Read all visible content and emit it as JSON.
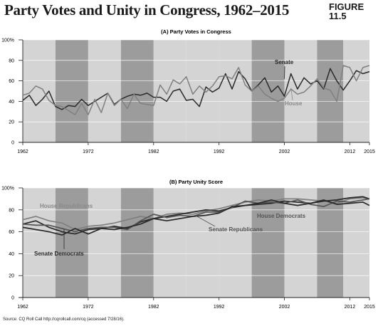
{
  "header": {
    "title": "Party Votes and Unity in Congress, 1962–2015",
    "figure_label": "FIGURE\n11.5"
  },
  "source": "Source: CQ Roll Call http://cqrollcall.com/cq (accessed 7/28/16).",
  "colors": {
    "band_light": "#d4d4d4",
    "band_dark": "#9c9c9c",
    "dark_series": "#2a2a2a",
    "light_series": "#808080",
    "mid_series": "#555555",
    "label_light": "#8a8a8a"
  },
  "chart_data": [
    {
      "type": "line",
      "title": "(A) Party Votes in Congress",
      "xlim": [
        1962,
        2015
      ],
      "ylim": [
        0,
        100
      ],
      "y_ticks": [
        "0",
        "20",
        "40",
        "60",
        "80",
        "100%"
      ],
      "y_tick_values": [
        0,
        20,
        40,
        60,
        80,
        100
      ],
      "x_ticks": [
        "1962",
        "1972",
        "1982",
        "1992",
        "2002",
        "2012",
        "2015"
      ],
      "x_tick_values": [
        1962,
        1972,
        1982,
        1992,
        2002,
        2012,
        2015
      ],
      "shade_bands": [
        [
          1962,
          1967
        ],
        [
          1967,
          1972
        ],
        [
          1972,
          1977
        ],
        [
          1977,
          1982
        ],
        [
          1982,
          1987
        ],
        [
          1987,
          1992
        ],
        [
          1992,
          1997
        ],
        [
          1997,
          2002
        ],
        [
          2002,
          2007
        ],
        [
          2007,
          2011
        ],
        [
          2011,
          2015
        ]
      ],
      "band_shades": [
        "light",
        "dark",
        "light",
        "dark",
        "light",
        "light",
        "light",
        "dark",
        "light",
        "dark",
        "light"
      ],
      "x": [
        1962,
        1963,
        1964,
        1965,
        1966,
        1967,
        1968,
        1969,
        1970,
        1971,
        1972,
        1973,
        1974,
        1975,
        1976,
        1977,
        1978,
        1979,
        1980,
        1981,
        1982,
        1983,
        1984,
        1985,
        1986,
        1987,
        1988,
        1989,
        1990,
        1991,
        1992,
        1993,
        1994,
        1995,
        1996,
        1997,
        1998,
        1999,
        2000,
        2001,
        2002,
        2003,
        2004,
        2005,
        2006,
        2007,
        2008,
        2009,
        2010,
        2011,
        2012,
        2013,
        2014,
        2015
      ],
      "series": [
        {
          "name": "Senate",
          "label": "Senate",
          "shade": "dark",
          "values": [
            41,
            46,
            36,
            42,
            50,
            35,
            32,
            36,
            35,
            42,
            36,
            40,
            44,
            48,
            37,
            42,
            45,
            47,
            46,
            48,
            44,
            44,
            40,
            50,
            52,
            41,
            42,
            35,
            54,
            49,
            53,
            67,
            52,
            69,
            62,
            50,
            56,
            63,
            49,
            55,
            45,
            67,
            52,
            63,
            57,
            60,
            52,
            72,
            60,
            51,
            60,
            70,
            67,
            69
          ]
        },
        {
          "name": "House",
          "label": "House",
          "shade": "light",
          "values": [
            46,
            48,
            55,
            52,
            41,
            36,
            35,
            31,
            27,
            38,
            27,
            42,
            29,
            48,
            36,
            42,
            33,
            47,
            38,
            37,
            36,
            56,
            47,
            61,
            57,
            64,
            47,
            55,
            49,
            55,
            64,
            65,
            62,
            73,
            56,
            50,
            55,
            47,
            43,
            40,
            43,
            52,
            47,
            49,
            55,
            62,
            53,
            51,
            40,
            75,
            73,
            60,
            73,
            75
          ]
        }
      ]
    },
    {
      "type": "line",
      "title": "(B) Party Unity Score",
      "xlim": [
        1962,
        2015
      ],
      "ylim": [
        0,
        100
      ],
      "y_ticks": [
        "0",
        "20",
        "40",
        "60",
        "80",
        "100%"
      ],
      "y_tick_values": [
        0,
        20,
        40,
        60,
        80,
        100
      ],
      "x_ticks": [
        "1962",
        "1972",
        "1982",
        "1992",
        "2002",
        "2012",
        "2015"
      ],
      "x_tick_values": [
        1962,
        1972,
        1982,
        1992,
        2002,
        2012,
        2015
      ],
      "shade_bands": [
        [
          1962,
          1967
        ],
        [
          1967,
          1972
        ],
        [
          1972,
          1977
        ],
        [
          1977,
          1982
        ],
        [
          1982,
          1987
        ],
        [
          1987,
          1992
        ],
        [
          1992,
          1997
        ],
        [
          1997,
          2002
        ],
        [
          2002,
          2007
        ],
        [
          2007,
          2011
        ],
        [
          2011,
          2015
        ]
      ],
      "band_shades": [
        "light",
        "dark",
        "light",
        "dark",
        "light",
        "light",
        "light",
        "dark",
        "light",
        "dark",
        "light"
      ],
      "x": [
        1962,
        1964,
        1966,
        1968,
        1970,
        1972,
        1974,
        1976,
        1978,
        1980,
        1982,
        1984,
        1986,
        1988,
        1990,
        1992,
        1994,
        1996,
        1998,
        2000,
        2002,
        2004,
        2006,
        2008,
        2010,
        2012,
        2014,
        2015
      ],
      "series": [
        {
          "name": "House Republicans",
          "label": "House Republicans",
          "label_pos": [
            1965,
            86
          ],
          "shade": "light",
          "values": [
            71,
            74,
            70,
            68,
            62,
            65,
            66,
            68,
            71,
            74,
            72,
            76,
            77,
            76,
            79,
            81,
            84,
            87,
            89,
            88,
            90,
            90,
            89,
            88,
            86,
            90,
            91,
            90
          ]
        },
        {
          "name": "House Democrats",
          "label": "House Democrats",
          "label_pos": [
            2001,
            79
          ],
          "shade": "dark",
          "values": [
            67,
            70,
            64,
            60,
            58,
            62,
            63,
            65,
            63,
            69,
            72,
            74,
            76,
            78,
            80,
            79,
            82,
            84,
            85,
            86,
            88,
            87,
            86,
            88,
            89,
            91,
            92,
            90
          ]
        },
        {
          "name": "Senate Republicans",
          "label": "Senate Republicans",
          "label_pos": [
            1991,
            67
          ],
          "shade": "mid",
          "values": [
            67,
            66,
            66,
            63,
            60,
            63,
            64,
            64,
            62,
            70,
            76,
            73,
            75,
            74,
            78,
            78,
            82,
            88,
            86,
            87,
            86,
            89,
            85,
            83,
            88,
            87,
            89,
            90
          ]
        },
        {
          "name": "Senate Democrats",
          "label": "Senate Democrats",
          "label_pos": [
            1965,
            40
          ],
          "shade": "dark",
          "values": [
            64,
            62,
            60,
            57,
            63,
            58,
            63,
            62,
            64,
            67,
            72,
            70,
            72,
            74,
            75,
            77,
            83,
            84,
            86,
            89,
            86,
            84,
            86,
            89,
            85,
            86,
            87,
            84
          ]
        }
      ]
    }
  ]
}
